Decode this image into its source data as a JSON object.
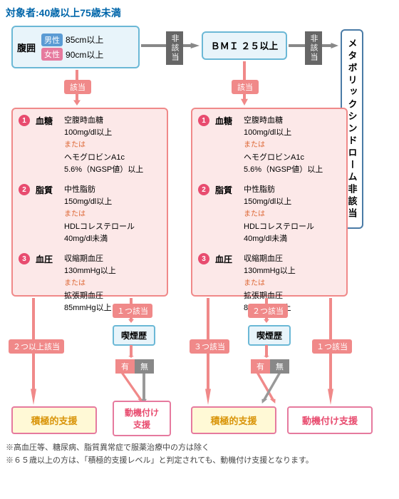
{
  "title": "対象者:40歳以上75歳未満",
  "waist": {
    "label": "腹囲",
    "male": "男性",
    "female": "女性",
    "mval": "85cm以上",
    "fval": "90cm以上"
  },
  "bmi": "ＢＭＩ ２５以上",
  "final": "メタボリックシンドローム非該当",
  "tags": {
    "applies": "該当",
    "na": "非該当"
  },
  "criteria": [
    {
      "n": "1",
      "label": "血糖",
      "v1": "空腹時血糖\n100mg/dl以上",
      "v2": "ヘモグロビンA1c\n5.6%（NGSP値）以上"
    },
    {
      "n": "2",
      "label": "脂質",
      "v1": "中性脂肪\n150mg/dl以上",
      "v2": "HDLコレステロール\n40mg/dl未満"
    },
    {
      "n": "3",
      "label": "血圧",
      "v1": "収縮期血圧\n130mmHg以上",
      "v2": "拡張期血圧\n85mmHg以上"
    }
  ],
  "or": "または",
  "counts": {
    "c1a": "２つ以上該当",
    "c1b": "１つ該当",
    "c2a": "３つ該当",
    "c2b": "２つ該当",
    "c2c": "１つ該当"
  },
  "smoke": {
    "label": "喫煙歴",
    "yes": "有",
    "no": "無"
  },
  "results": {
    "active": "積極的支援",
    "motiv": "動機付け支援",
    "motiv2": "動機付け\n支援"
  },
  "notes": [
    "※高血圧等、糖尿病、脂質異常症で服薬治療中の方は除く",
    "※６５歳以上の方は、「積極的支援レベル」と判定されても、動機付け支援となります。"
  ]
}
